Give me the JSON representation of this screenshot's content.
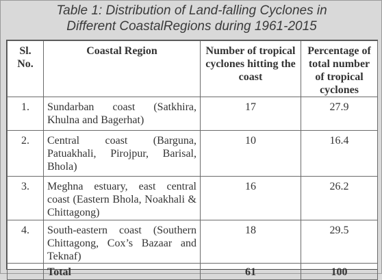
{
  "caption": {
    "line1": "Table 1: Distribution of Land-falling Cyclones in",
    "line2": "Different CoastalRegions during 1961-2015"
  },
  "headers": {
    "sl": "Sl. No.",
    "region": "Coastal Region",
    "number": "Number of tropical cyclones hitting the coast",
    "percentage": "Percentage of total number of tropical cyclones"
  },
  "rows": [
    {
      "sl": "1.",
      "region": "Sundarban coast (Satkhira, Khulna and Bagerhat)",
      "number": "17",
      "percentage": "27.9"
    },
    {
      "sl": "2.",
      "region": "Central coast (Barguna, Patuakhali, Pirojpur, Barisal, Bhola)",
      "number": "10",
      "percentage": "16.4"
    },
    {
      "sl": "3.",
      "region": "Meghna estuary, east central coast (Eastern Bhola, Noakhali & Chittagong)",
      "number": "16",
      "percentage": "26.2"
    },
    {
      "sl": "4.",
      "region": "South-eastern coast (Southern Chittagong, Cox’s Bazaar and Teknaf)",
      "number": "18",
      "percentage": "29.5"
    }
  ],
  "total": {
    "label": "Total",
    "number": "61",
    "percentage": "100"
  }
}
